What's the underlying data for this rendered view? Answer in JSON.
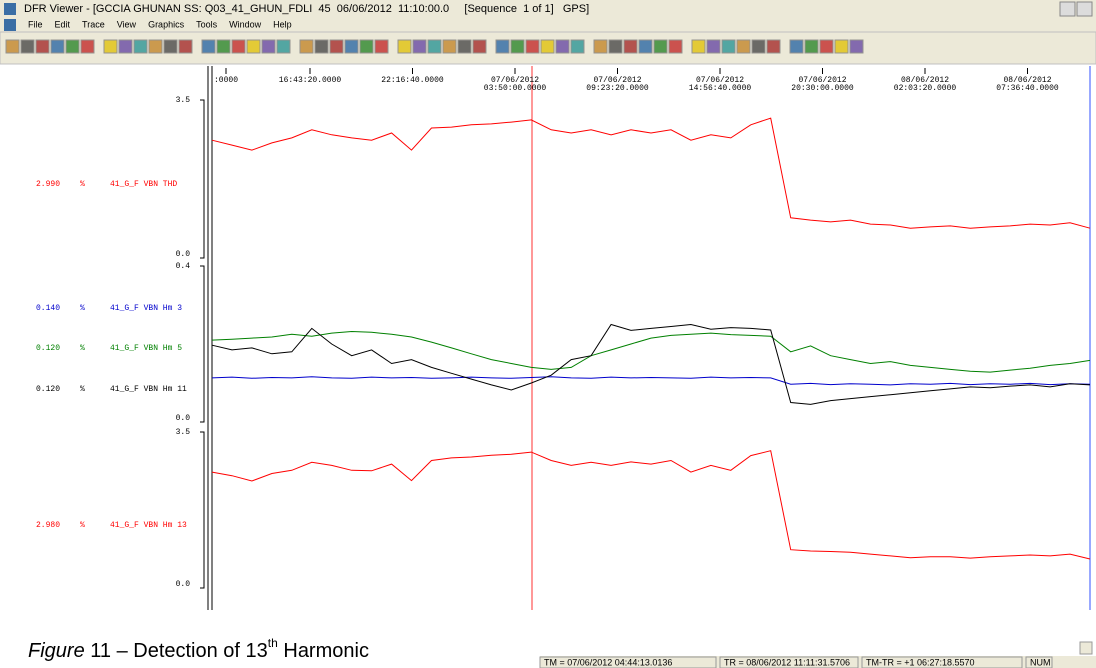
{
  "window": {
    "title": "DFR Viewer - [GCCIA GHUNAN SS: Q03_41_GHUN_FDLI  45  06/06/2012  11:10:00.0     [Sequence  1 of 1]   GPS]"
  },
  "menu": [
    "File",
    "Edit",
    "Trace",
    "View",
    "Graphics",
    "Tools",
    "Window",
    "Help"
  ],
  "time_axis": {
    "labels": [
      {
        "time": ":0000"
      },
      {
        "time": "16:43:20.0000"
      },
      {
        "time": "22:16:40.0000"
      },
      {
        "date": "07/06/2012",
        "time": "03:50:00.0000"
      },
      {
        "date": "07/06/2012",
        "time": "09:23:20.0000"
      },
      {
        "date": "07/06/2012",
        "time": "14:56:40.0000"
      },
      {
        "date": "07/06/2012",
        "time": "20:30:00.0000"
      },
      {
        "date": "08/06/2012",
        "time": "02:03:20.0000"
      },
      {
        "date": "08/06/2012",
        "time": "07:36:40.0000"
      }
    ]
  },
  "panels": [
    {
      "top": 3.5,
      "bottom": {
        "value": 0,
        "label": "0.0"
      },
      "channels": [
        {
          "value": "2.990",
          "unit": "%",
          "name": "41_G_F VBN THD",
          "color": "#ff0000",
          "samples": [
            2.61,
            2.5,
            2.39,
            2.55,
            2.66,
            2.84,
            2.73,
            2.66,
            2.61,
            2.77,
            2.39,
            2.88,
            2.9,
            2.95,
            2.97,
            3.01,
            3.06,
            2.84,
            2.77,
            2.84,
            2.73,
            2.84,
            2.77,
            2.84,
            2.61,
            2.73,
            2.66,
            2.95,
            3.1,
            0.89,
            0.84,
            0.8,
            0.84,
            0.75,
            0.73,
            0.66,
            0.69,
            0.71,
            0.66,
            0.69,
            0.71,
            0.75,
            0.73,
            0.78,
            0.66
          ]
        }
      ]
    },
    {
      "top": 0.4,
      "bottom": {
        "value": 0,
        "label": "0.0"
      },
      "channels": [
        {
          "value": "0.140",
          "unit": "%",
          "name": "41_G_F VBN Hm 3",
          "color": "#0000cc",
          "samples": [
            0.113,
            0.115,
            0.112,
            0.114,
            0.113,
            0.116,
            0.113,
            0.112,
            0.115,
            0.113,
            0.114,
            0.112,
            0.113,
            0.115,
            0.113,
            0.112,
            0.114,
            0.116,
            0.113,
            0.112,
            0.115,
            0.113,
            0.114,
            0.113,
            0.112,
            0.115,
            0.113,
            0.114,
            0.113,
            0.097,
            0.099,
            0.096,
            0.098,
            0.097,
            0.095,
            0.098,
            0.097,
            0.099,
            0.096,
            0.098,
            0.097,
            0.099,
            0.096,
            0.098,
            0.097
          ]
        },
        {
          "value": "0.120",
          "unit": "%",
          "name": "41_G_F VBN Hm 5",
          "color": "#008000",
          "samples": [
            0.21,
            0.212,
            0.215,
            0.218,
            0.225,
            0.22,
            0.228,
            0.232,
            0.23,
            0.225,
            0.218,
            0.205,
            0.19,
            0.175,
            0.16,
            0.15,
            0.14,
            0.135,
            0.14,
            0.17,
            0.185,
            0.2,
            0.215,
            0.222,
            0.225,
            0.228,
            0.224,
            0.222,
            0.22,
            0.18,
            0.195,
            0.17,
            0.16,
            0.15,
            0.155,
            0.145,
            0.14,
            0.135,
            0.13,
            0.128,
            0.133,
            0.138,
            0.145,
            0.15,
            0.158
          ]
        },
        {
          "value": "0.120",
          "unit": "%",
          "name": "41_G_F VBN Hm 11",
          "color": "#000000",
          "samples": [
            0.197,
            0.185,
            0.19,
            0.175,
            0.18,
            0.24,
            0.2,
            0.17,
            0.185,
            0.15,
            0.16,
            0.14,
            0.125,
            0.11,
            0.095,
            0.082,
            0.1,
            0.12,
            0.16,
            0.17,
            0.25,
            0.235,
            0.24,
            0.245,
            0.25,
            0.238,
            0.242,
            0.24,
            0.236,
            0.05,
            0.045,
            0.055,
            0.06,
            0.065,
            0.07,
            0.075,
            0.08,
            0.085,
            0.09,
            0.088,
            0.092,
            0.095,
            0.09,
            0.098,
            0.095
          ]
        }
      ]
    },
    {
      "top": 3.5,
      "bottom": {
        "value": 0,
        "label": "0.0"
      },
      "channels": [
        {
          "value": "2.980",
          "unit": "%",
          "name": "41_G_F VBN Hm 13",
          "color": "#ff0000",
          "samples": [
            2.6,
            2.52,
            2.4,
            2.57,
            2.64,
            2.82,
            2.75,
            2.64,
            2.63,
            2.78,
            2.41,
            2.86,
            2.92,
            2.94,
            2.98,
            3.0,
            3.05,
            2.86,
            2.75,
            2.82,
            2.75,
            2.83,
            2.78,
            2.86,
            2.6,
            2.75,
            2.64,
            2.97,
            3.08,
            0.86,
            0.83,
            0.82,
            0.8,
            0.76,
            0.72,
            0.68,
            0.7,
            0.7,
            0.67,
            0.7,
            0.72,
            0.74,
            0.72,
            0.76,
            0.65
          ]
        }
      ]
    }
  ],
  "status": [
    "TM = 07/06/2012 04:44:13.0136",
    "TR = 08/06/2012 11:11:31.5706",
    "TM-TR = +1 06:27:18.5570",
    "NUM"
  ],
  "caption": {
    "label": "Figure",
    "text": " 11 – Detection of 13",
    "sup": "th",
    "rest": " Harmonic"
  }
}
